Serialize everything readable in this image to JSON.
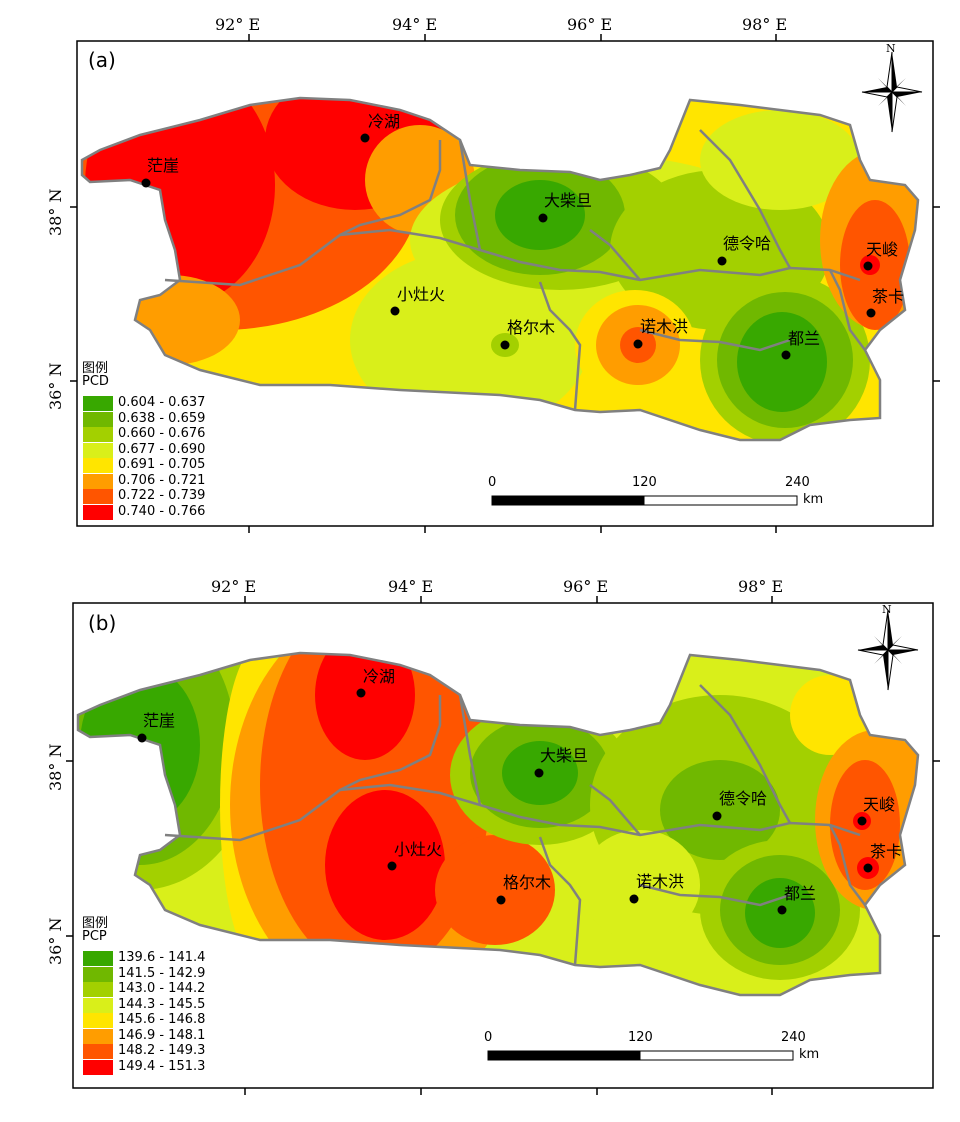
{
  "colors": {
    "class1": "#38a800",
    "class2": "#70b800",
    "class3": "#a3d000",
    "class4": "#d9ef1a",
    "class5": "#ffe500",
    "class6": "#ff9d00",
    "class7": "#ff5500",
    "class8": "#ff0000",
    "border": "#808080",
    "frame": "#000000"
  },
  "panels": [
    {
      "id": "a",
      "panel_label": "(a)",
      "top_ticks": [
        "92°  E",
        "94°  E",
        "96°  E",
        "98°  E"
      ],
      "side_ticks": [
        "38°  N",
        "36°  N"
      ],
      "north_label": "N",
      "legend_title": "图例",
      "legend_field": "PCD",
      "legend_items": [
        {
          "range": "0.604 - 0.637",
          "color": "#38a800"
        },
        {
          "range": "0.638 - 0.659",
          "color": "#70b800"
        },
        {
          "range": "0.660 - 0.676",
          "color": "#a3d000"
        },
        {
          "range": "0.677 - 0.690",
          "color": "#d9ef1a"
        },
        {
          "range": "0.691 - 0.705",
          "color": "#ffe500"
        },
        {
          "range": "0.706 - 0.721",
          "color": "#ff9d00"
        },
        {
          "range": "0.722 - 0.739",
          "color": "#ff5500"
        },
        {
          "range": "0.740 - 0.766",
          "color": "#ff0000"
        }
      ],
      "scale": {
        "labels": [
          "0",
          "120",
          "240"
        ],
        "unit": "km"
      },
      "stations": [
        "茫崖",
        "冷湖",
        "大柴旦",
        "德令哈",
        "天峻",
        "茶卡",
        "小灶火",
        "格尔木",
        "诺木洪",
        "都兰"
      ]
    },
    {
      "id": "b",
      "panel_label": "(b)",
      "top_ticks": [
        "92°  E",
        "94°  E",
        "96°  E",
        "98°  E"
      ],
      "side_ticks": [
        "38°  N",
        "36°  N"
      ],
      "north_label": "N",
      "legend_title": "图例",
      "legend_field": "PCP",
      "legend_items": [
        {
          "range": "139.6 - 141.4",
          "color": "#38a800"
        },
        {
          "range": "141.5 - 142.9",
          "color": "#70b800"
        },
        {
          "range": "143.0 - 144.2",
          "color": "#a3d000"
        },
        {
          "range": "144.3 - 145.5",
          "color": "#d9ef1a"
        },
        {
          "range": "145.6 - 146.8",
          "color": "#ffe500"
        },
        {
          "range": "146.9 - 148.1",
          "color": "#ff9d00"
        },
        {
          "range": "148.2 - 149.3",
          "color": "#ff5500"
        },
        {
          "range": "149.4 - 151.3",
          "color": "#ff0000"
        }
      ],
      "scale": {
        "labels": [
          "0",
          "120",
          "240"
        ],
        "unit": "km"
      },
      "stations": [
        "茫崖",
        "冷湖",
        "大柴旦",
        "德令哈",
        "天峻",
        "茶卡",
        "小灶火",
        "格尔木",
        "诺木洪",
        "都兰"
      ]
    }
  ]
}
